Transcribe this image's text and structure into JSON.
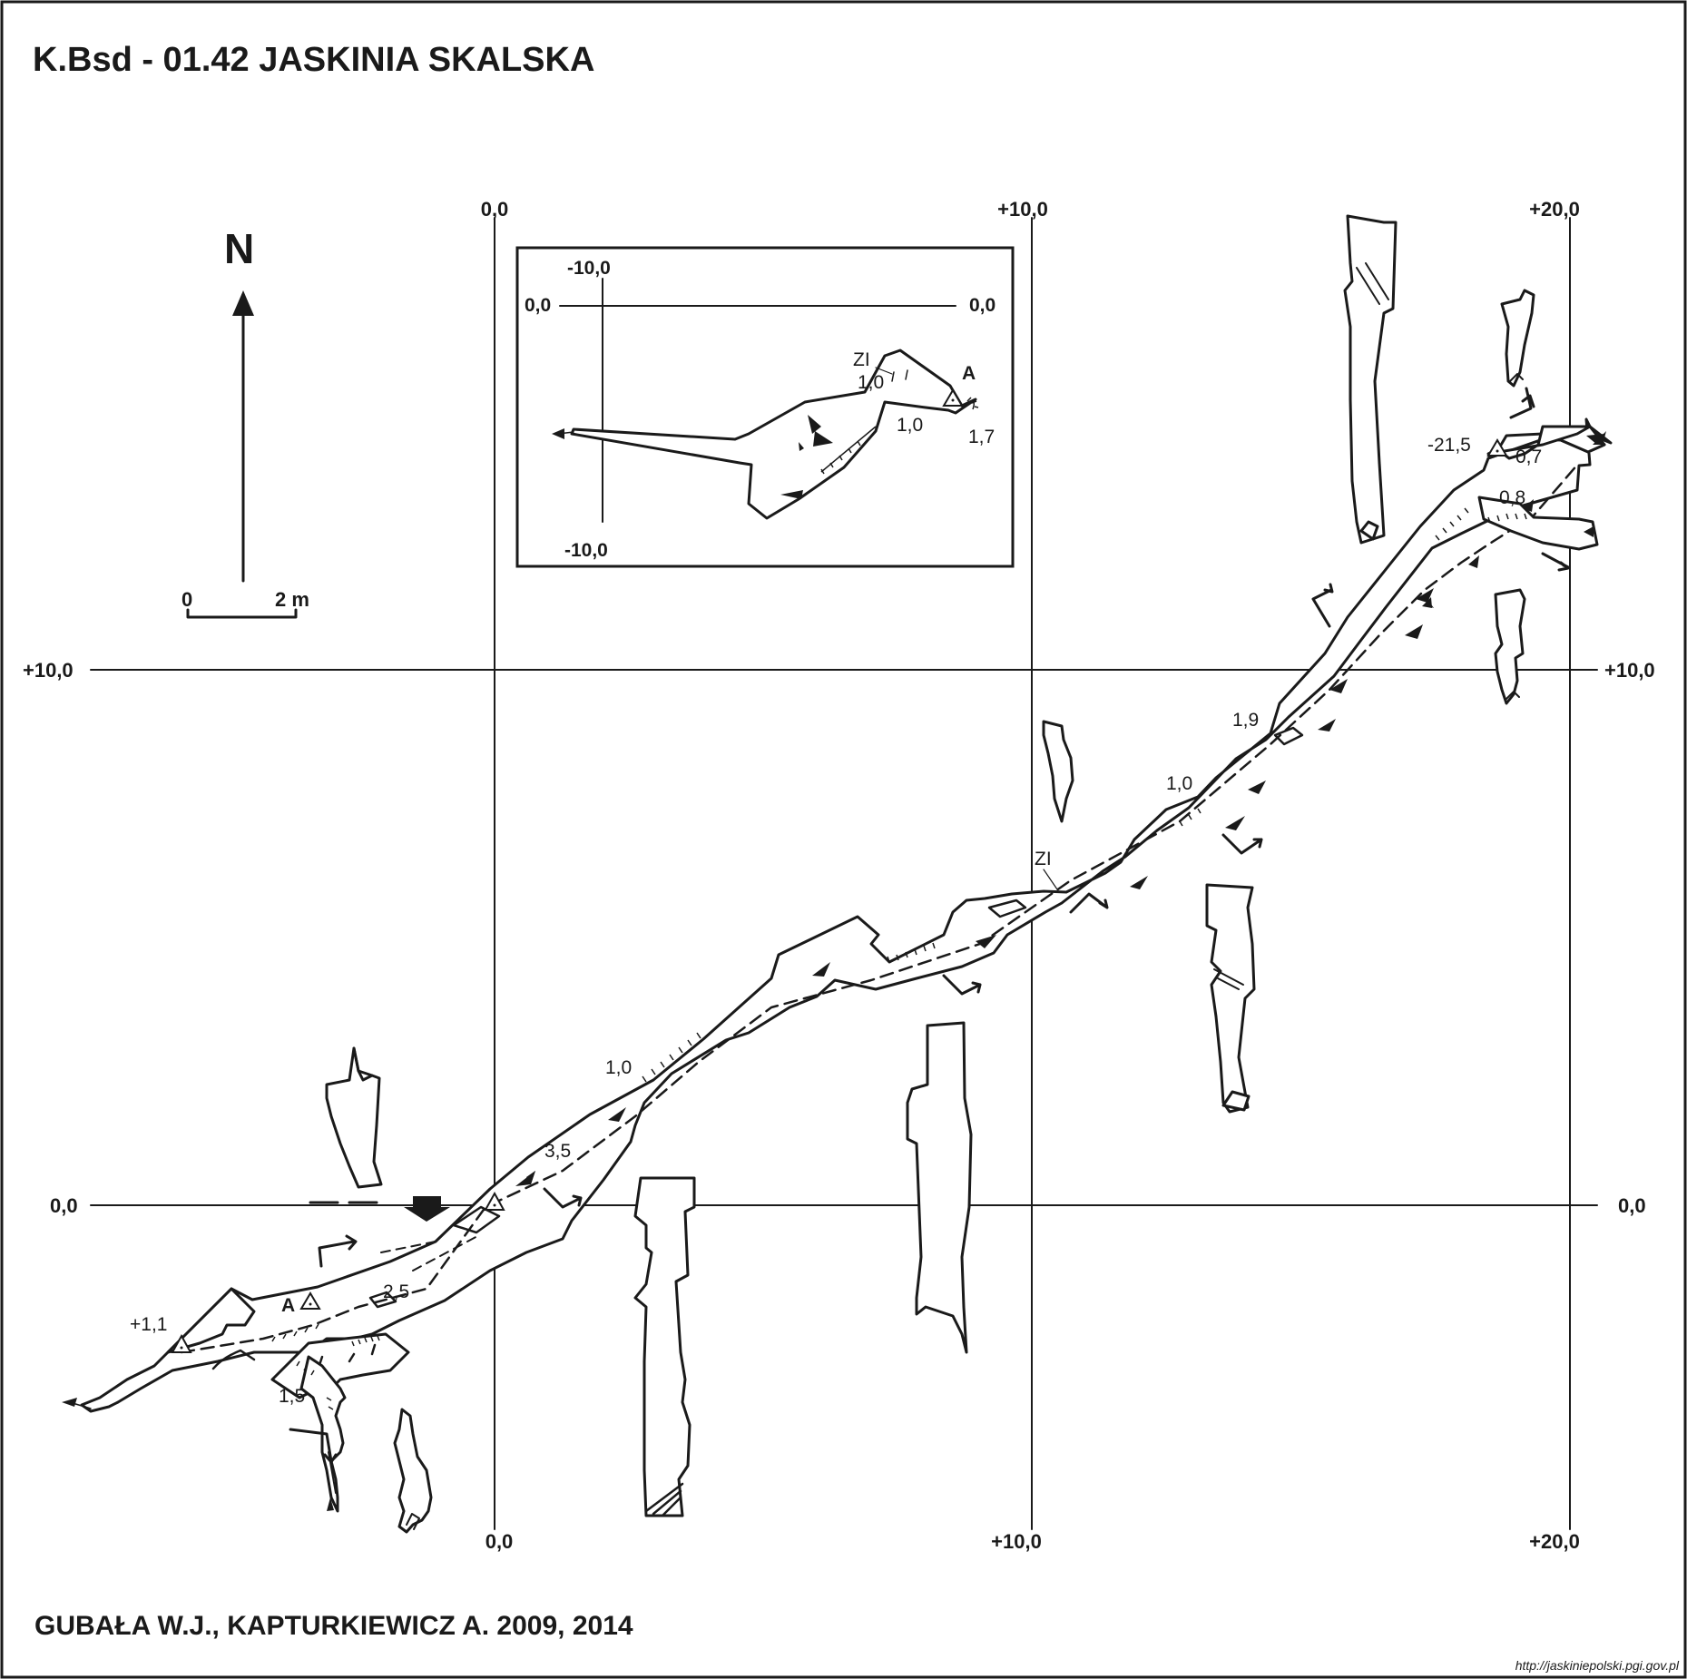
{
  "title": "K.Bsd - 01.42  JASKINIA SKALSKA",
  "authors": "GUBAŁA W.J., KAPTURKIEWICZ A. 2009, 2014",
  "source_url": "http://jaskiniepolski.pgi.gov.pl",
  "north_label": "N",
  "scale_bar": {
    "zero": "0",
    "length": "2 m"
  },
  "grid": {
    "x_top": [
      "0,0",
      "+10,0",
      "+20,0"
    ],
    "x_bottom": [
      "0,0",
      "+10,0",
      "+20,0"
    ],
    "y_left": [
      "+10,0",
      "0,0"
    ],
    "y_right": [
      "+10,0",
      "0,0"
    ]
  },
  "inset": {
    "top": "-10,0",
    "left": "0,0",
    "right": "0,0",
    "bottom": "-10,0",
    "labels": [
      "ZI",
      "1,0",
      "1,0",
      "A",
      "1,7"
    ]
  },
  "main_labels": [
    "+1,1",
    "A",
    "1,5",
    "2,5",
    "3,5",
    "1,0",
    "ZI",
    "1,0",
    "1,9",
    "-21,5",
    "0,7",
    "0,8"
  ],
  "colors": {
    "ink": "#1a1a1a",
    "background": "#ffffff"
  }
}
